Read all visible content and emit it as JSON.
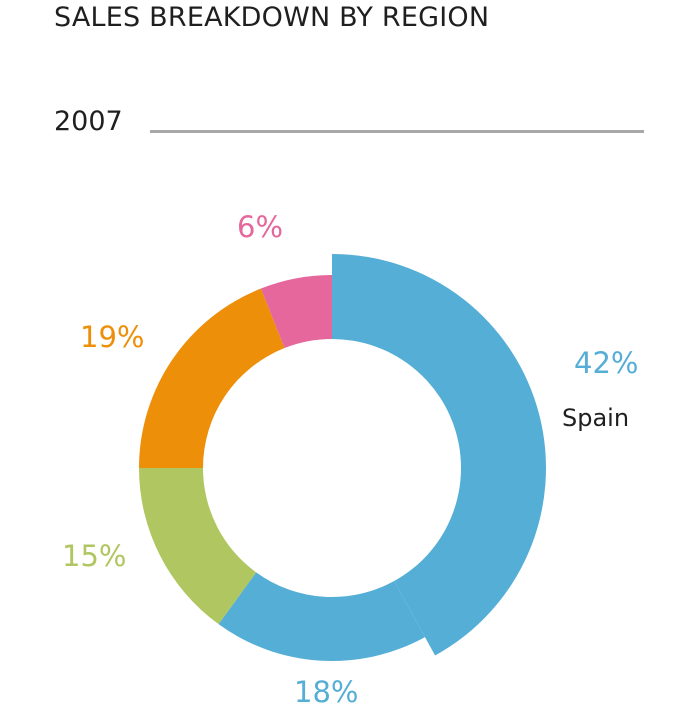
{
  "title": "SALES BREAKDOWN BY REGION",
  "year": "2007",
  "chart_data": {
    "type": "pie",
    "title": "SALES BREAKDOWN BY REGION",
    "subtitle": "2007",
    "slices": [
      {
        "label": "Spain",
        "value": 42,
        "display": "42%",
        "color": "#55aed6",
        "highlight": true
      },
      {
        "label": "",
        "value": 18,
        "display": "18%",
        "color": "#55aed6"
      },
      {
        "label": "",
        "value": 15,
        "display": "15%",
        "color": "#b0c660"
      },
      {
        "label": "",
        "value": 19,
        "display": "19%",
        "color": "#ee8f0a"
      },
      {
        "label": "",
        "value": 6,
        "display": "6%",
        "color": "#e5679b"
      }
    ]
  }
}
